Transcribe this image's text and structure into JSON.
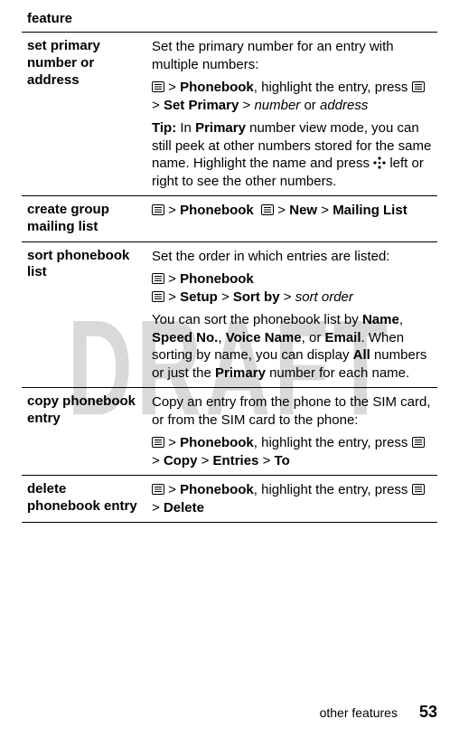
{
  "header": "feature",
  "watermark": "DRAFT",
  "footer": {
    "label": "other features",
    "page": "53"
  },
  "icons": {
    "menu_svg": "<svg viewBox='0 0 14 12'><rect x='0.5' y='0.5' width='13' height='11' rx='1.5' fill='none' stroke='#000' stroke-width='1'/><line x1='3' y1='3.5' x2='11' y2='3.5' stroke='#000' stroke-width='1'/><line x1='3' y1='6' x2='11' y2='6' stroke='#000' stroke-width='1'/><line x1='3' y1='8.5' x2='11' y2='8.5' stroke='#000' stroke-width='1'/></svg>",
    "nav_svg": "<svg viewBox='0 0 14 14'><circle cx='7' cy='2' r='1.6' fill='#000'/><circle cx='7' cy='12' r='1.6' fill='#000'/><circle cx='2' cy='7' r='1.6' fill='#000'/><circle cx='12' cy='7' r='1.6' fill='#000'/><circle cx='7' cy='7' r='1.2' fill='#000'/></svg>"
  },
  "rows": [
    {
      "feature": "set primary number or address",
      "blocks": [
        {
          "html": "Set the primary number for an entry with multiple numbers:"
        },
        {
          "html": "{MENU} > <span class='bold-cond'>Phonebook</span>, highlight the entry, press {MENU} > <span class='bold-cond'>Set Primary</span> > <span class='italic'>number</span> or <span class='italic'>address</span>"
        },
        {
          "html": "<span class='tip-label'>Tip:</span> In <span class='bold-cond'>Primary</span> number view mode, you can still peek at other numbers stored for the same name. Highlight the name and press {NAV} left or right to see the other numbers."
        }
      ]
    },
    {
      "feature": "create group mailing list",
      "blocks": [
        {
          "html": "{MENU} > <span class='bold-cond'>Phonebook</span>&nbsp;&nbsp;{MENU} > <span class='bold-cond'>New</span> > <span class='bold-cond'>Mailing List</span>"
        }
      ]
    },
    {
      "feature": "sort phonebook list",
      "blocks": [
        {
          "html": "Set the order in which entries are listed:"
        },
        {
          "html": "{MENU} > <span class='bold-cond'>Phonebook</span><br>{MENU} > <span class='bold-cond'>Setup</span> > <span class='bold-cond'>Sort by</span> > <span class='italic'>sort order</span>"
        },
        {
          "html": "You can sort the phonebook list by <span class='bold-cond'>Name</span>, <span class='bold-cond'>Speed No.</span>, <span class='bold-cond'>Voice Name</span>, or <span class='bold-cond'>Email</span>. When sorting by name, you can display <span class='bold-cond'>All</span> numbers or just the <span class='bold-cond'>Primary</span> number for each name."
        }
      ]
    },
    {
      "feature": "copy phonebook entry",
      "blocks": [
        {
          "html": "Copy an entry from the phone to the SIM card, or from the SIM card to the phone:"
        },
        {
          "html": "{MENU} > <span class='bold-cond'>Phonebook</span>, highlight the entry, press {MENU} > <span class='bold-cond'>Copy</span> > <span class='bold-cond'>Entries</span> > <span class='bold-cond'>To</span>"
        }
      ]
    },
    {
      "feature": "delete phonebook entry",
      "blocks": [
        {
          "html": "{MENU} > <span class='bold-cond'>Phonebook</span>, highlight the entry, press {MENU} > <span class='bold-cond'>Delete</span>"
        }
      ]
    }
  ]
}
